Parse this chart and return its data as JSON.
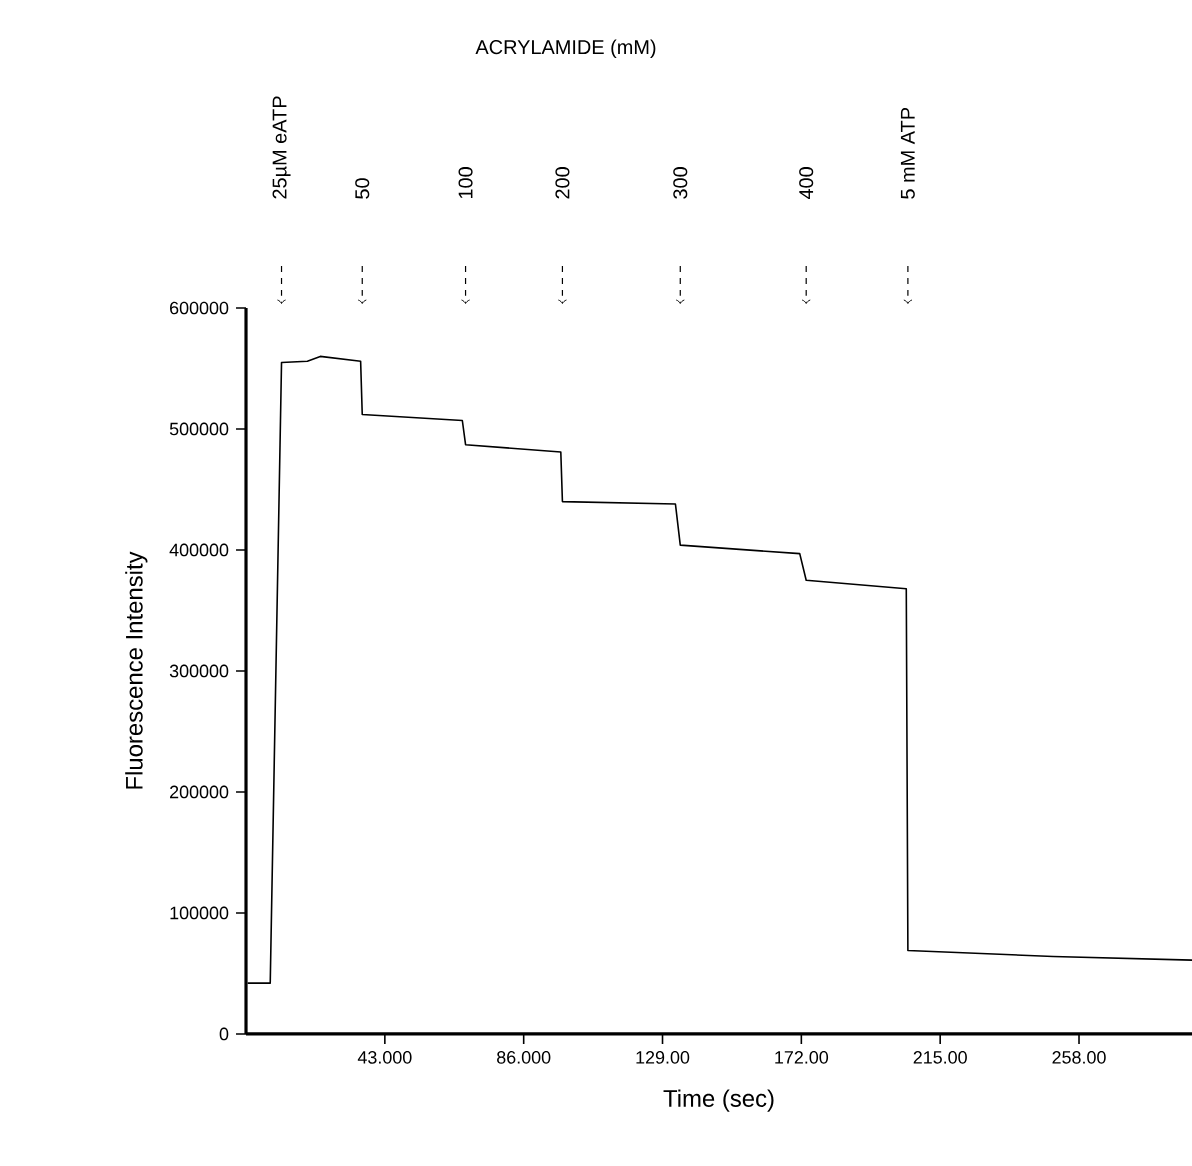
{
  "chart_data": {
    "type": "line",
    "title": "ACRYLAMIDE (mM)",
    "xlabel": "Time (sec)",
    "ylabel": "Fluorescence Intensity",
    "x": [
      0.5,
      7.5,
      11,
      19,
      23,
      35.5,
      36,
      67,
      68,
      97.5,
      98,
      133,
      134.5,
      171.5,
      173.5,
      204.5,
      205,
      250,
      293
    ],
    "series": [
      {
        "color": "#000000",
        "values": [
          42000,
          42000,
          555000,
          556000,
          560000,
          556000,
          512000,
          507000,
          487000,
          481000,
          440000,
          438000,
          404000,
          397000,
          375000,
          368000,
          69000,
          64000,
          61000
        ]
      }
    ],
    "xlim": [
      0,
      293
    ],
    "ylim": [
      0,
      600000
    ],
    "xticks": [
      {
        "value": 43,
        "label": "43.000"
      },
      {
        "value": 86,
        "label": "86.000"
      },
      {
        "value": 129,
        "label": "129.00"
      },
      {
        "value": 172,
        "label": "172.00"
      },
      {
        "value": 215,
        "label": "215.00"
      },
      {
        "value": 258,
        "label": "258.00"
      }
    ],
    "yticks": [
      0,
      100000,
      200000,
      300000,
      400000,
      500000,
      600000
    ],
    "annotations": [
      "25µM eATP",
      "50",
      "100",
      "200",
      "300",
      "400",
      "5 mM ATP"
    ],
    "grid": false,
    "marker": "none",
    "line_style": "solid"
  }
}
